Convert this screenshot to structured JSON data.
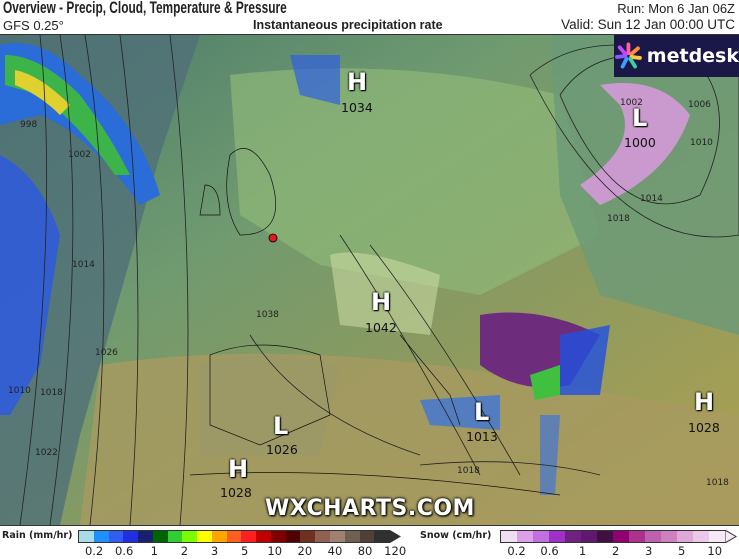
{
  "header": {
    "title": "Overview - Precip, Cloud, Temperature & Pressure",
    "model": "GFS 0.25°",
    "subtitle": "Instantaneous precipitation rate",
    "run": "Run: Mon 6 Jan 06Z",
    "valid": "Valid: Sun 12 Jan 00:00 UTC"
  },
  "logo": {
    "text": "metdesk"
  },
  "watermark": "WXCHARTS.COM",
  "pressure_centers": [
    {
      "type": "H",
      "value": "1034"
    },
    {
      "type": "L",
      "value": "1000"
    },
    {
      "type": "H",
      "value": "1042"
    },
    {
      "type": "L",
      "value": "1013"
    },
    {
      "type": "H",
      "value": "1028"
    },
    {
      "type": "L",
      "value": "1026"
    },
    {
      "type": "H",
      "value": "1028"
    }
  ],
  "isobar_labels": [
    "998",
    "1002",
    "1014",
    "1026",
    "1018",
    "1010",
    "1022",
    "1002",
    "1006",
    "1010",
    "1014",
    "1018",
    "1038",
    "1018",
    "1018"
  ],
  "location_marker_color": "#e31a1c",
  "legend": {
    "rain": {
      "label": "Rain (mm/hr)",
      "ticks": [
        "0.2",
        "0.6",
        "1",
        "2",
        "3",
        "5",
        "10",
        "20",
        "40",
        "80",
        "120"
      ],
      "colors": [
        "#a8dde8",
        "#1e90ff",
        "#2f5ef0",
        "#2030e0",
        "#1a2070",
        "#006400",
        "#32cd32",
        "#7cfc00",
        "#ffff00",
        "#ffa500",
        "#ff6020",
        "#ff2020",
        "#c00000",
        "#800000",
        "#500000",
        "#703020",
        "#906050",
        "#a08070",
        "#706050",
        "#504038",
        "#303030"
      ]
    },
    "snow": {
      "label": "Snow (cm/hr)",
      "ticks": [
        "0.2",
        "0.6",
        "1",
        "2",
        "3",
        "5",
        "10"
      ],
      "colors": [
        "#f0dff0",
        "#dda0e8",
        "#c070e0",
        "#a030c8",
        "#702080",
        "#601870",
        "#401040",
        "#900070",
        "#b03090",
        "#c060b0",
        "#d080c0",
        "#e0a8d8",
        "#ecc8e8",
        "#f6e8f4"
      ]
    }
  }
}
